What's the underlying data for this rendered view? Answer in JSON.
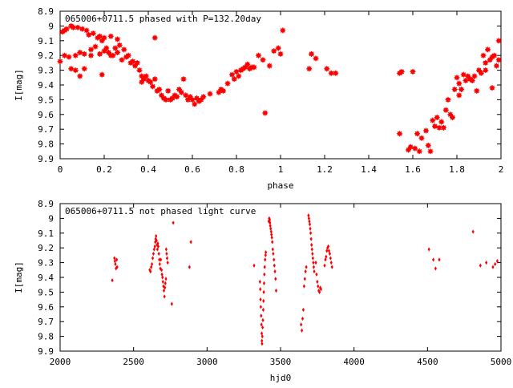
{
  "chart_data": [
    {
      "type": "scatter",
      "title": "065006+0711.5 phased with P=132.20day",
      "xlabel": "phase",
      "ylabel": "I[mag]",
      "xlim": [
        0,
        2
      ],
      "ylim": [
        9.9,
        8.9
      ],
      "y_inverted": true,
      "grid": false,
      "color": "#ff0000",
      "marker": "star",
      "xticks": [
        "0",
        "0.2",
        "0.4",
        "0.6",
        "0.8",
        "1",
        "1.2",
        "1.4",
        "1.6",
        "1.8",
        "2"
      ],
      "yticks": [
        "8.9",
        "9",
        "9.1",
        "9.2",
        "9.3",
        "9.4",
        "9.5",
        "9.6",
        "9.7",
        "9.8",
        "9.9"
      ],
      "points": [
        [
          0.0,
          9.24
        ],
        [
          0.01,
          9.04
        ],
        [
          0.02,
          9.03
        ],
        [
          0.02,
          9.2
        ],
        [
          0.03,
          9.02
        ],
        [
          0.04,
          9.21
        ],
        [
          0.05,
          9.0
        ],
        [
          0.05,
          9.29
        ],
        [
          0.06,
          9.01
        ],
        [
          0.07,
          9.2
        ],
        [
          0.07,
          9.3
        ],
        [
          0.08,
          9.01
        ],
        [
          0.09,
          9.18
        ],
        [
          0.09,
          9.34
        ],
        [
          0.1,
          9.02
        ],
        [
          0.11,
          9.19
        ],
        [
          0.11,
          9.29
        ],
        [
          0.12,
          9.03
        ],
        [
          0.13,
          9.06
        ],
        [
          0.14,
          9.16
        ],
        [
          0.14,
          9.2
        ],
        [
          0.15,
          9.05
        ],
        [
          0.16,
          9.14
        ],
        [
          0.17,
          9.08
        ],
        [
          0.18,
          9.07
        ],
        [
          0.18,
          9.19
        ],
        [
          0.19,
          9.1
        ],
        [
          0.19,
          9.33
        ],
        [
          0.2,
          9.08
        ],
        [
          0.2,
          9.17
        ],
        [
          0.21,
          9.15
        ],
        [
          0.22,
          9.18
        ],
        [
          0.23,
          9.07
        ],
        [
          0.23,
          9.2
        ],
        [
          0.24,
          9.2
        ],
        [
          0.25,
          9.15
        ],
        [
          0.26,
          9.09
        ],
        [
          0.26,
          9.18
        ],
        [
          0.27,
          9.13
        ],
        [
          0.28,
          9.23
        ],
        [
          0.29,
          9.16
        ],
        [
          0.3,
          9.21
        ],
        [
          0.31,
          9.2
        ],
        [
          0.32,
          9.25
        ],
        [
          0.33,
          9.24
        ],
        [
          0.34,
          9.27
        ],
        [
          0.35,
          9.25
        ],
        [
          0.36,
          9.3
        ],
        [
          0.37,
          9.34
        ],
        [
          0.37,
          9.38
        ],
        [
          0.38,
          9.36
        ],
        [
          0.39,
          9.34
        ],
        [
          0.4,
          9.37
        ],
        [
          0.41,
          9.38
        ],
        [
          0.42,
          9.41
        ],
        [
          0.43,
          9.08
        ],
        [
          0.43,
          9.36
        ],
        [
          0.44,
          9.44
        ],
        [
          0.45,
          9.43
        ],
        [
          0.46,
          9.47
        ],
        [
          0.47,
          9.49
        ],
        [
          0.48,
          9.5
        ],
        [
          0.49,
          9.44
        ],
        [
          0.5,
          9.5
        ],
        [
          0.51,
          9.49
        ],
        [
          0.52,
          9.47
        ],
        [
          0.53,
          9.48
        ],
        [
          0.54,
          9.43
        ],
        [
          0.55,
          9.45
        ],
        [
          0.56,
          9.36
        ],
        [
          0.57,
          9.47
        ],
        [
          0.58,
          9.5
        ],
        [
          0.59,
          9.48
        ],
        [
          0.6,
          9.5
        ],
        [
          0.61,
          9.53
        ],
        [
          0.62,
          9.49
        ],
        [
          0.63,
          9.51
        ],
        [
          0.64,
          9.5
        ],
        [
          0.65,
          9.48
        ],
        [
          0.68,
          9.46
        ],
        [
          0.72,
          9.45
        ],
        [
          0.73,
          9.43
        ],
        [
          0.74,
          9.44
        ],
        [
          0.76,
          9.39
        ],
        [
          0.78,
          9.33
        ],
        [
          0.79,
          9.36
        ],
        [
          0.8,
          9.31
        ],
        [
          0.81,
          9.34
        ],
        [
          0.82,
          9.3
        ],
        [
          0.83,
          9.29
        ],
        [
          0.84,
          9.28
        ],
        [
          0.85,
          9.26
        ],
        [
          0.86,
          9.29
        ],
        [
          0.87,
          9.28
        ],
        [
          0.88,
          9.28
        ],
        [
          0.9,
          9.2
        ],
        [
          0.92,
          9.23
        ],
        [
          0.93,
          9.59
        ],
        [
          0.95,
          9.27
        ],
        [
          0.97,
          9.17
        ],
        [
          0.99,
          9.15
        ],
        [
          1.0,
          9.19
        ],
        [
          1.01,
          9.03
        ],
        [
          1.13,
          9.29
        ],
        [
          1.14,
          9.19
        ],
        [
          1.16,
          9.22
        ],
        [
          1.21,
          9.29
        ],
        [
          1.23,
          9.32
        ],
        [
          1.25,
          9.32
        ],
        [
          1.54,
          9.32
        ],
        [
          1.54,
          9.73
        ],
        [
          1.55,
          9.31
        ],
        [
          1.58,
          9.84
        ],
        [
          1.59,
          9.82
        ],
        [
          1.6,
          9.31
        ],
        [
          1.61,
          9.83
        ],
        [
          1.62,
          9.73
        ],
        [
          1.63,
          9.85
        ],
        [
          1.64,
          9.76
        ],
        [
          1.66,
          9.71
        ],
        [
          1.67,
          9.81
        ],
        [
          1.68,
          9.85
        ],
        [
          1.69,
          9.64
        ],
        [
          1.7,
          9.68
        ],
        [
          1.71,
          9.62
        ],
        [
          1.72,
          9.69
        ],
        [
          1.73,
          9.65
        ],
        [
          1.74,
          9.69
        ],
        [
          1.75,
          9.57
        ],
        [
          1.76,
          9.5
        ],
        [
          1.77,
          9.6
        ],
        [
          1.78,
          9.62
        ],
        [
          1.79,
          9.43
        ],
        [
          1.8,
          9.35
        ],
        [
          1.81,
          9.39
        ],
        [
          1.81,
          9.47
        ],
        [
          1.82,
          9.43
        ],
        [
          1.83,
          9.33
        ],
        [
          1.84,
          9.37
        ],
        [
          1.85,
          9.34
        ],
        [
          1.86,
          9.36
        ],
        [
          1.87,
          9.37
        ],
        [
          1.88,
          9.34
        ],
        [
          1.89,
          9.44
        ],
        [
          1.9,
          9.3
        ],
        [
          1.91,
          9.32
        ],
        [
          1.92,
          9.2
        ],
        [
          1.93,
          9.25
        ],
        [
          1.93,
          9.3
        ],
        [
          1.94,
          9.16
        ],
        [
          1.95,
          9.23
        ],
        [
          1.96,
          9.21
        ],
        [
          1.96,
          9.42
        ],
        [
          1.97,
          9.2
        ],
        [
          1.98,
          9.27
        ],
        [
          1.99,
          9.1
        ],
        [
          1.99,
          9.23
        ]
      ]
    },
    {
      "type": "scatter",
      "title": "065006+0711.5 not phased light curve",
      "xlabel": "hjd0",
      "ylabel": "I[mag]",
      "xlim": [
        2000,
        5000
      ],
      "ylim": [
        9.9,
        8.9
      ],
      "y_inverted": true,
      "grid": false,
      "color": "#ff0000",
      "marker": "diamond",
      "xticks": [
        "2000",
        "2500",
        "3000",
        "3500",
        "4000",
        "4500",
        "5000"
      ],
      "yticks": [
        "8.9",
        "9",
        "9.1",
        "9.2",
        "9.3",
        "9.4",
        "9.5",
        "9.6",
        "9.7",
        "9.8",
        "9.9"
      ],
      "points": [
        [
          2355,
          9.42
        ],
        [
          2370,
          9.27
        ],
        [
          2373,
          9.29
        ],
        [
          2376,
          9.31
        ],
        [
          2380,
          9.34
        ],
        [
          2385,
          9.28
        ],
        [
          2388,
          9.33
        ],
        [
          2610,
          9.35
        ],
        [
          2615,
          9.36
        ],
        [
          2620,
          9.33
        ],
        [
          2625,
          9.31
        ],
        [
          2630,
          9.27
        ],
        [
          2635,
          9.24
        ],
        [
          2640,
          9.21
        ],
        [
          2645,
          9.19
        ],
        [
          2648,
          9.16
        ],
        [
          2650,
          9.14
        ],
        [
          2653,
          9.12
        ],
        [
          2656,
          9.15
        ],
        [
          2660,
          9.18
        ],
        [
          2662,
          9.21
        ],
        [
          2665,
          9.17
        ],
        [
          2668,
          9.19
        ],
        [
          2672,
          9.24
        ],
        [
          2675,
          9.28
        ],
        [
          2678,
          9.31
        ],
        [
          2682,
          9.34
        ],
        [
          2685,
          9.28
        ],
        [
          2690,
          9.35
        ],
        [
          2693,
          9.38
        ],
        [
          2697,
          9.4
        ],
        [
          2700,
          9.43
        ],
        [
          2703,
          9.46
        ],
        [
          2706,
          9.49
        ],
        [
          2710,
          9.53
        ],
        [
          2713,
          9.47
        ],
        [
          2716,
          9.44
        ],
        [
          2720,
          9.41
        ],
        [
          2722,
          9.21
        ],
        [
          2725,
          9.24
        ],
        [
          2728,
          9.27
        ],
        [
          2732,
          9.3
        ],
        [
          2760,
          9.58
        ],
        [
          2770,
          9.03
        ],
        [
          2880,
          9.33
        ],
        [
          2890,
          9.16
        ],
        [
          3320,
          9.32
        ],
        [
          3360,
          9.43
        ],
        [
          3362,
          9.48
        ],
        [
          3364,
          9.55
        ],
        [
          3366,
          9.6
        ],
        [
          3368,
          9.66
        ],
        [
          3370,
          9.72
        ],
        [
          3372,
          9.78
        ],
        [
          3373,
          9.83
        ],
        [
          3374,
          9.85
        ],
        [
          3376,
          9.8
        ],
        [
          3378,
          9.74
        ],
        [
          3380,
          9.69
        ],
        [
          3382,
          9.62
        ],
        [
          3384,
          9.56
        ],
        [
          3386,
          9.5
        ],
        [
          3388,
          9.44
        ],
        [
          3390,
          9.38
        ],
        [
          3392,
          9.33
        ],
        [
          3395,
          9.28
        ],
        [
          3398,
          9.25
        ],
        [
          3400,
          9.23
        ],
        [
          3420,
          9.02
        ],
        [
          3423,
          9.0
        ],
        [
          3426,
          9.01
        ],
        [
          3428,
          9.03
        ],
        [
          3430,
          9.05
        ],
        [
          3433,
          9.07
        ],
        [
          3436,
          9.09
        ],
        [
          3438,
          9.11
        ],
        [
          3441,
          9.13
        ],
        [
          3444,
          9.16
        ],
        [
          3447,
          9.21
        ],
        [
          3450,
          9.24
        ],
        [
          3455,
          9.28
        ],
        [
          3458,
          9.32
        ],
        [
          3462,
          9.36
        ],
        [
          3466,
          9.41
        ],
        [
          3470,
          9.49
        ],
        [
          3640,
          9.72
        ],
        [
          3645,
          9.76
        ],
        [
          3650,
          9.68
        ],
        [
          3655,
          9.62
        ],
        [
          3660,
          9.46
        ],
        [
          3665,
          9.41
        ],
        [
          3670,
          9.36
        ],
        [
          3675,
          9.33
        ],
        [
          3690,
          8.98
        ],
        [
          3693,
          9.0
        ],
        [
          3696,
          9.02
        ],
        [
          3699,
          9.04
        ],
        [
          3702,
          9.07
        ],
        [
          3705,
          9.1
        ],
        [
          3708,
          9.14
        ],
        [
          3711,
          9.18
        ],
        [
          3714,
          9.21
        ],
        [
          3717,
          9.24
        ],
        [
          3720,
          9.27
        ],
        [
          3723,
          9.3
        ],
        [
          3726,
          9.33
        ],
        [
          3729,
          9.36
        ],
        [
          3740,
          9.3
        ],
        [
          3745,
          9.38
        ],
        [
          3750,
          9.43
        ],
        [
          3755,
          9.46
        ],
        [
          3760,
          9.49
        ],
        [
          3765,
          9.5
        ],
        [
          3770,
          9.47
        ],
        [
          3775,
          9.48
        ],
        [
          3800,
          9.32
        ],
        [
          3805,
          9.28
        ],
        [
          3810,
          9.26
        ],
        [
          3815,
          9.22
        ],
        [
          3820,
          9.2
        ],
        [
          3825,
          9.19
        ],
        [
          3830,
          9.22
        ],
        [
          3835,
          9.24
        ],
        [
          3840,
          9.27
        ],
        [
          3845,
          9.3
        ],
        [
          3850,
          9.33
        ],
        [
          4510,
          9.21
        ],
        [
          4540,
          9.28
        ],
        [
          4555,
          9.34
        ],
        [
          4580,
          9.28
        ],
        [
          4810,
          9.09
        ],
        [
          4860,
          9.32
        ],
        [
          4900,
          9.3
        ],
        [
          4945,
          9.33
        ],
        [
          4960,
          9.31
        ],
        [
          4975,
          9.29
        ]
      ]
    }
  ]
}
